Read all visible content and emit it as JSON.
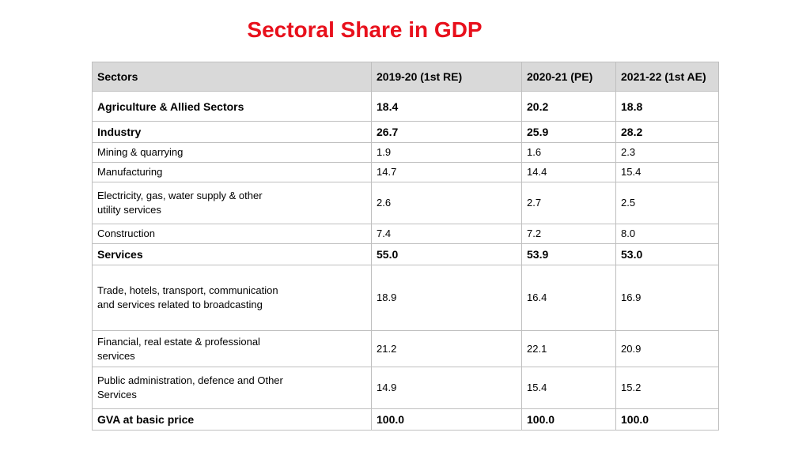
{
  "title": "Sectoral Share in GDP",
  "table": {
    "headers": [
      "Sectors",
      "2019-20 (1st RE)",
      "2020-21 (PE)",
      "2021-22 (1st AE)"
    ],
    "rows": [
      {
        "sector": "Agriculture & Allied Sectors",
        "v1": "18.4",
        "v2": "20.2",
        "v3": "18.8"
      },
      {
        "sector": "Industry",
        "v1": "26.7",
        "v2": "25.9",
        "v3": "28.2"
      },
      {
        "sector": "Mining & quarrying",
        "v1": "1.9",
        "v2": "1.6",
        "v3": "2.3"
      },
      {
        "sector": "Manufacturing",
        "v1": "14.7",
        "v2": "14.4",
        "v3": "15.4"
      },
      {
        "sector": "Electricity, gas, water supply & other utility services",
        "v1": "2.6",
        "v2": "2.7",
        "v3": "2.5"
      },
      {
        "sector": "Construction",
        "v1": "7.4",
        "v2": "7.2",
        "v3": "8.0"
      },
      {
        "sector": "Services",
        "v1": "55.0",
        "v2": "53.9",
        "v3": "53.0"
      },
      {
        "sector": "Trade, hotels, transport, communication and services related to broadcasting",
        "v1": "18.9",
        "v2": "16.4",
        "v3": "16.9"
      },
      {
        "sector": "Financial, real estate & professional services",
        "v1": "21.2",
        "v2": "22.1",
        "v3": "20.9"
      },
      {
        "sector": "Public administration, defence and Other Services",
        "v1": "14.9",
        "v2": "15.4",
        "v3": "15.2"
      },
      {
        "sector": "GVA at basic price",
        "v1": "100.0",
        "v2": "100.0",
        "v3": "100.0"
      }
    ]
  }
}
